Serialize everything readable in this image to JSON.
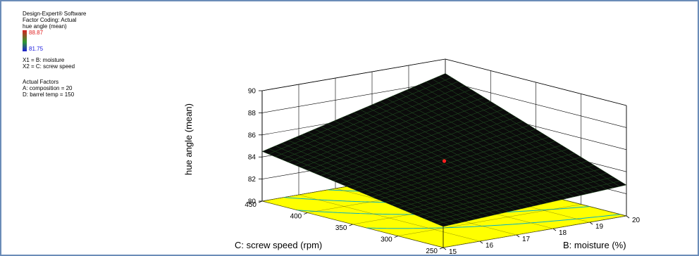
{
  "info": {
    "software": "Design-Expert® Software",
    "coding": "Factor Coding: Actual",
    "response": "hue angle (mean)",
    "legend_max": "88.87",
    "legend_min": "81.75",
    "x1": "X1 = B: moisture",
    "x2": "X2 = C: screw speed",
    "actual_factors_title": "Actual Factors",
    "factor_a": "A: composition = 20",
    "factor_d": "D: barrel temp = 150"
  },
  "colors": {
    "surface": "#0b0b0b",
    "mesh": "#1f5a1f",
    "floor": "#ffff00",
    "contour": "#00b0c8",
    "point": "#ff2020",
    "border": "#6b8cb8"
  },
  "chart_data": {
    "type": "surface",
    "zlabel": "hue angle (mean)",
    "xlabel": "B: moisture (%)",
    "ylabel": "C: screw speed (rpm)",
    "x_ticks": [
      "15",
      "16",
      "17",
      "18",
      "19",
      "20"
    ],
    "y_ticks": [
      "250",
      "300",
      "350",
      "400",
      "450"
    ],
    "z_ticks": [
      "80",
      "82",
      "84",
      "86",
      "88",
      "90"
    ],
    "xlim": [
      15,
      20
    ],
    "ylim": [
      250,
      450
    ],
    "zlim": [
      80,
      90
    ],
    "corner_values": [
      {
        "moisture": 15,
        "screw_speed": 250,
        "hue": 81.9
      },
      {
        "moisture": 20,
        "screw_speed": 250,
        "hue": 82.8
      },
      {
        "moisture": 15,
        "screw_speed": 450,
        "hue": 84.5
      },
      {
        "moisture": 20,
        "screw_speed": 450,
        "hue": 88.7
      }
    ],
    "center_point": {
      "moisture": 17.5,
      "screw_speed": 350,
      "hue": 84.3
    },
    "grid": true
  }
}
